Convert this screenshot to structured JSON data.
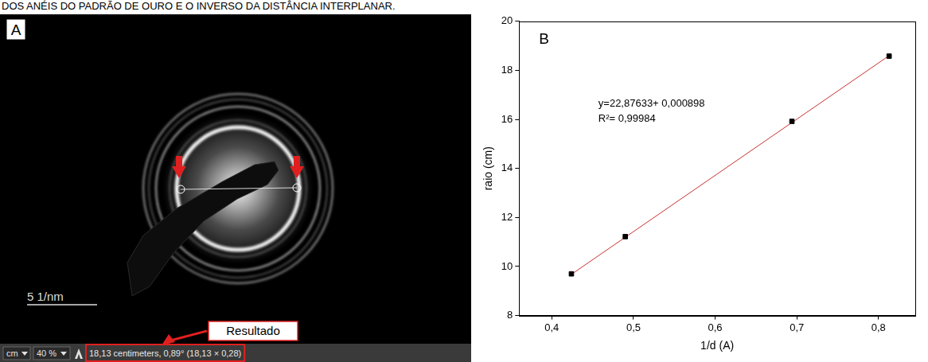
{
  "caption": "DOS ANÉIS DO PADRÃO DE OURO E O INVERSO DA DISTÂNCIA INTERPLANAR.",
  "panel_a": {
    "label": "A",
    "scale_bar": "5 1/nm",
    "callout": "Resultado",
    "toolbar": {
      "unit": "cm",
      "zoom": "40 %",
      "measurement": "18,13 centimeters, 0,89° (18,13 × 0,28)"
    }
  },
  "chart_data": {
    "type": "scatter",
    "panel_label": "B",
    "x_label": "1/d (A)",
    "y_label": "raio (cm)",
    "annotations": [
      "y=22,87633+ 0,000898",
      "R²= 0,99984"
    ],
    "series": [
      {
        "type": "scatter",
        "color": "#000000",
        "marker": "square",
        "x": [
          0.424,
          0.49,
          0.694,
          0.813
        ],
        "values": [
          9.7,
          11.22,
          15.92,
          18.58
        ]
      },
      {
        "type": "line",
        "color": "#c83232",
        "line_style": "solid",
        "x": [
          0.424,
          0.813
        ],
        "values": [
          9.68,
          18.6
        ]
      }
    ],
    "xlim": [
      0.36,
      0.845
    ],
    "xticks": [
      {
        "value": 0.4,
        "label": "0,4"
      },
      {
        "value": 0.5,
        "label": "0,5"
      },
      {
        "value": 0.6,
        "label": "0,6"
      },
      {
        "value": 0.7,
        "label": "0,7"
      },
      {
        "value": 0.8,
        "label": "0,8"
      }
    ],
    "ylim": [
      8,
      20
    ],
    "yticks": [
      8,
      10,
      12,
      14,
      16,
      18,
      20
    ],
    "grid": false
  }
}
